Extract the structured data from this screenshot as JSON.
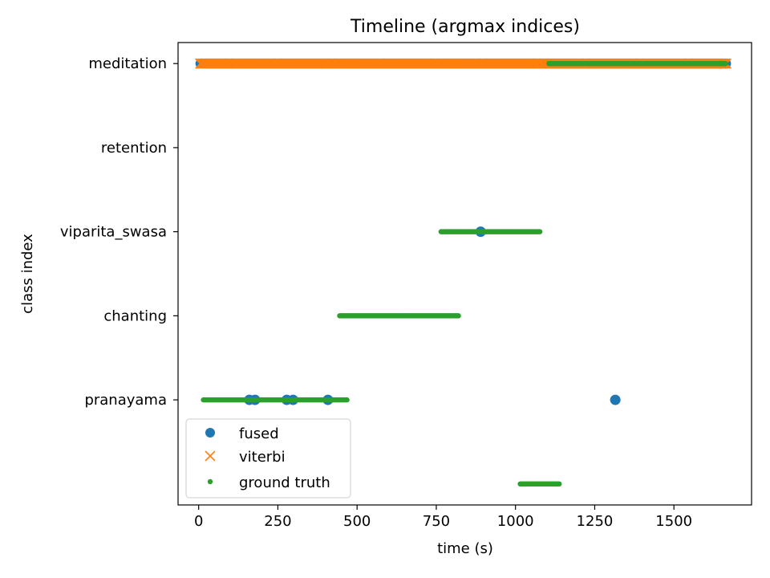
{
  "chart_data": {
    "type": "scatter",
    "title": "Timeline (argmax indices)",
    "xlabel": "time (s)",
    "ylabel": "class index",
    "xlim": [
      -65,
      1745
    ],
    "ylim": [
      -0.25,
      5.25
    ],
    "x_ticks": [
      0,
      250,
      500,
      750,
      1000,
      1250,
      1500
    ],
    "x_tick_labels": [
      "0",
      "250",
      "500",
      "750",
      "1000",
      "1250",
      "1500"
    ],
    "y_ticks": [
      1,
      2,
      3,
      4,
      5
    ],
    "y_tick_labels": [
      "pranayama",
      "chanting",
      "viparita_swasa",
      "retention",
      "meditation"
    ],
    "grid": false,
    "legend_position": "lower-left",
    "series": [
      {
        "name": "fused",
        "marker": "circle",
        "color": "#1f77b4",
        "points": [
          {
            "x": 5,
            "y": 5
          },
          {
            "x": 30,
            "y": 5
          },
          {
            "x": 100,
            "y": 5
          },
          {
            "x": 200,
            "y": 5
          },
          {
            "x": 400,
            "y": 5
          },
          {
            "x": 600,
            "y": 5
          },
          {
            "x": 800,
            "y": 5
          },
          {
            "x": 1000,
            "y": 5
          },
          {
            "x": 1200,
            "y": 5
          },
          {
            "x": 1400,
            "y": 5
          },
          {
            "x": 1600,
            "y": 5
          },
          {
            "x": 1665,
            "y": 5
          },
          {
            "x": 160,
            "y": 1
          },
          {
            "x": 178,
            "y": 1
          },
          {
            "x": 278,
            "y": 1
          },
          {
            "x": 298,
            "y": 1
          },
          {
            "x": 408,
            "y": 1
          },
          {
            "x": 890,
            "y": 3
          },
          {
            "x": 1315,
            "y": 1
          }
        ]
      },
      {
        "name": "viterbi",
        "marker": "x",
        "color": "#ff7f0e",
        "x_start": 5,
        "x_end": 1665,
        "y": 5
      },
      {
        "name": "ground truth",
        "marker": "dot",
        "color": "#2ca02c",
        "segments": [
          {
            "y": 1,
            "x_start": 15,
            "x_end": 470
          },
          {
            "y": 2,
            "x_start": 445,
            "x_end": 820
          },
          {
            "y": 3,
            "x_start": 765,
            "x_end": 1078
          },
          {
            "y": 0,
            "x_start": 1015,
            "x_end": 1140
          },
          {
            "y": 5,
            "x_start": 1105,
            "x_end": 1665
          }
        ]
      }
    ]
  }
}
